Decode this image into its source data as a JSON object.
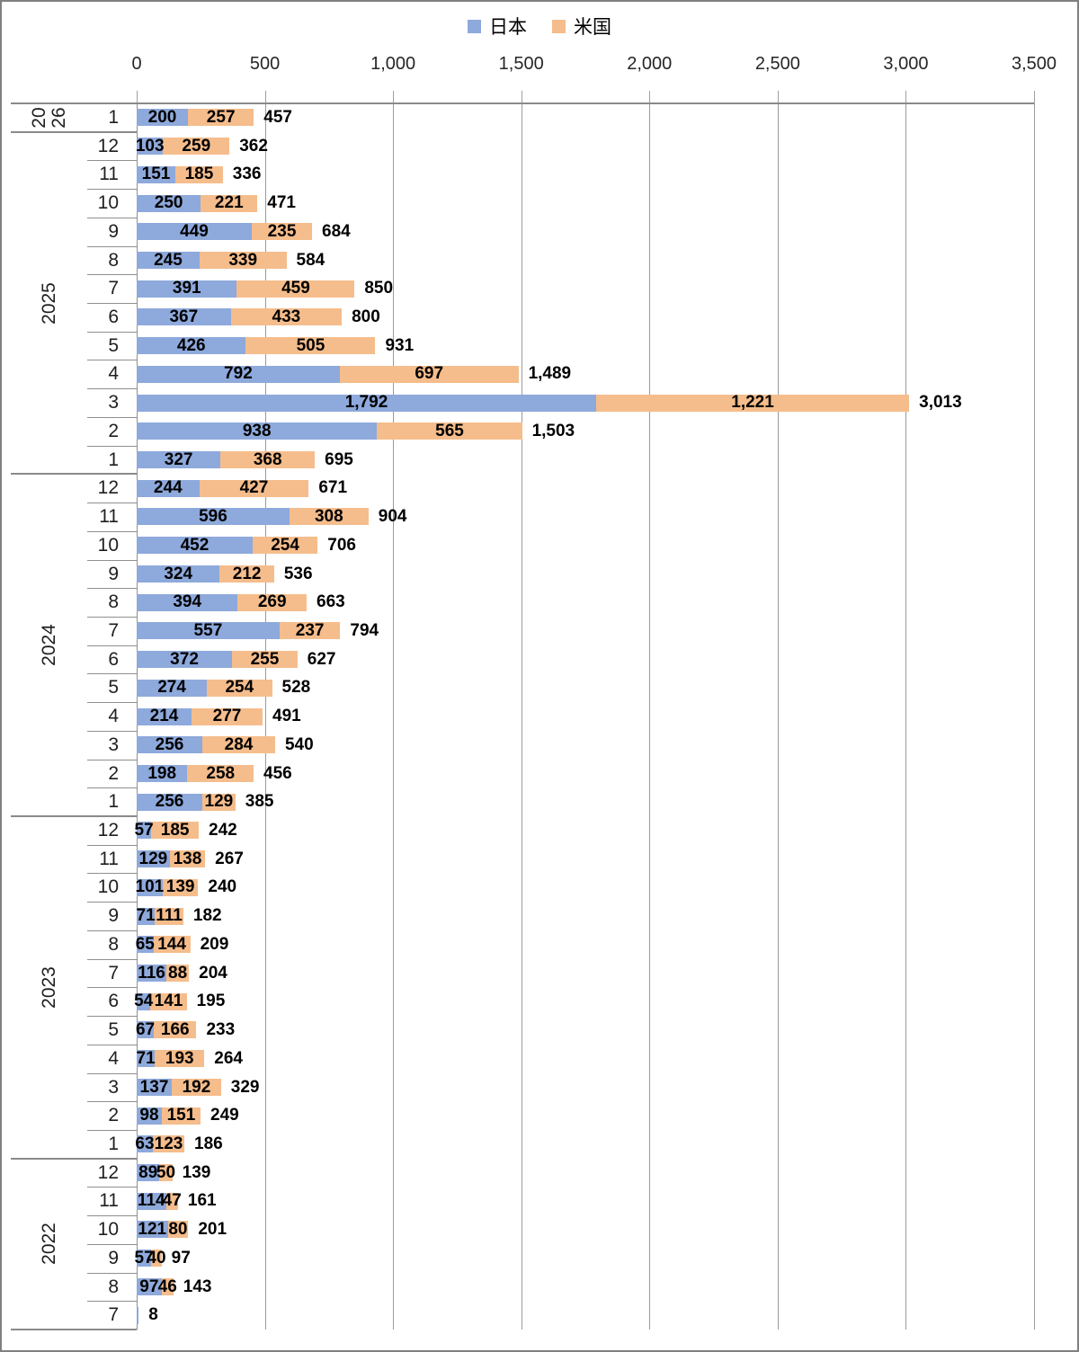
{
  "chart_data": {
    "type": "bar",
    "orientation": "horizontal",
    "stacked": true,
    "legend": [
      "日本",
      "米国"
    ],
    "legend_position": "top-center",
    "x_ticks": [
      "0",
      "500",
      "1,000",
      "1,500",
      "2,000",
      "2,500",
      "3,000",
      "3,500"
    ],
    "x_range": [
      0,
      3500
    ],
    "grid": true,
    "colors": {
      "japan": "#8EA9DB",
      "us": "#F5BD8C"
    },
    "series_names": [
      "日本",
      "米国"
    ],
    "groups": [
      {
        "year": "2026",
        "wrap_year_label": true,
        "rows": [
          {
            "month": "1",
            "japan": 200,
            "us": 257,
            "japan_label": "200",
            "us_label": "257",
            "total_label": "457"
          }
        ]
      },
      {
        "year": "2025",
        "wrap_year_label": false,
        "rows": [
          {
            "month": "12",
            "japan": 103,
            "us": 259,
            "japan_label": "103",
            "us_label": "259",
            "total_label": "362"
          },
          {
            "month": "11",
            "japan": 151,
            "us": 185,
            "japan_label": "151",
            "us_label": "185",
            "total_label": "336"
          },
          {
            "month": "10",
            "japan": 250,
            "us": 221,
            "japan_label": "250",
            "us_label": "221",
            "total_label": "471"
          },
          {
            "month": "9",
            "japan": 449,
            "us": 235,
            "japan_label": "449",
            "us_label": "235",
            "total_label": "684"
          },
          {
            "month": "8",
            "japan": 245,
            "us": 339,
            "japan_label": "245",
            "us_label": "339",
            "total_label": "584"
          },
          {
            "month": "7",
            "japan": 391,
            "us": 459,
            "japan_label": "391",
            "us_label": "459",
            "total_label": "850"
          },
          {
            "month": "6",
            "japan": 367,
            "us": 433,
            "japan_label": "367",
            "us_label": "433",
            "total_label": "800"
          },
          {
            "month": "5",
            "japan": 426,
            "us": 505,
            "japan_label": "426",
            "us_label": "505",
            "total_label": "931"
          },
          {
            "month": "4",
            "japan": 792,
            "us": 697,
            "japan_label": "792",
            "us_label": "697",
            "total_label": "1,489"
          },
          {
            "month": "3",
            "japan": 1792,
            "us": 1221,
            "japan_label": "1,792",
            "us_label": "1,221",
            "total_label": "3,013"
          },
          {
            "month": "2",
            "japan": 938,
            "us": 565,
            "japan_label": "938",
            "us_label": "565",
            "total_label": "1,503"
          },
          {
            "month": "1",
            "japan": 327,
            "us": 368,
            "japan_label": "327",
            "us_label": "368",
            "total_label": "695"
          }
        ]
      },
      {
        "year": "2024",
        "wrap_year_label": false,
        "rows": [
          {
            "month": "12",
            "japan": 244,
            "us": 427,
            "japan_label": "244",
            "us_label": "427",
            "total_label": "671"
          },
          {
            "month": "11",
            "japan": 596,
            "us": 308,
            "japan_label": "596",
            "us_label": "308",
            "total_label": "904"
          },
          {
            "month": "10",
            "japan": 452,
            "us": 254,
            "japan_label": "452",
            "us_label": "254",
            "total_label": "706"
          },
          {
            "month": "9",
            "japan": 324,
            "us": 212,
            "japan_label": "324",
            "us_label": "212",
            "total_label": "536"
          },
          {
            "month": "8",
            "japan": 394,
            "us": 269,
            "japan_label": "394",
            "us_label": "269",
            "total_label": "663"
          },
          {
            "month": "7",
            "japan": 557,
            "us": 237,
            "japan_label": "557",
            "us_label": "237",
            "total_label": "794"
          },
          {
            "month": "6",
            "japan": 372,
            "us": 255,
            "japan_label": "372",
            "us_label": "255",
            "total_label": "627"
          },
          {
            "month": "5",
            "japan": 274,
            "us": 254,
            "japan_label": "274",
            "us_label": "254",
            "total_label": "528"
          },
          {
            "month": "4",
            "japan": 214,
            "us": 277,
            "japan_label": "214",
            "us_label": "277",
            "total_label": "491"
          },
          {
            "month": "3",
            "japan": 256,
            "us": 284,
            "japan_label": "256",
            "us_label": "284",
            "total_label": "540"
          },
          {
            "month": "2",
            "japan": 198,
            "us": 258,
            "japan_label": "198",
            "us_label": "258",
            "total_label": "456"
          },
          {
            "month": "1",
            "japan": 256,
            "us": 129,
            "japan_label": "256",
            "us_label": "129",
            "total_label": "385"
          }
        ]
      },
      {
        "year": "2023",
        "wrap_year_label": false,
        "rows": [
          {
            "month": "12",
            "japan": 57,
            "us": 185,
            "japan_label": "57",
            "us_label": "185",
            "total_label": "242"
          },
          {
            "month": "11",
            "japan": 129,
            "us": 138,
            "japan_label": "129",
            "us_label": "138",
            "total_label": "267"
          },
          {
            "month": "10",
            "japan": 101,
            "us": 139,
            "japan_label": "101",
            "us_label": "139",
            "total_label": "240"
          },
          {
            "month": "9",
            "japan": 71,
            "us": 111,
            "japan_label": "71",
            "us_label": "111",
            "total_label": "182"
          },
          {
            "month": "8",
            "japan": 65,
            "us": 144,
            "japan_label": "65",
            "us_label": "144",
            "total_label": "209"
          },
          {
            "month": "7",
            "japan": 116,
            "us": 88,
            "japan_label": "116",
            "us_label": "88",
            "total_label": "204"
          },
          {
            "month": "6",
            "japan": 54,
            "us": 141,
            "japan_label": "54",
            "us_label": "141",
            "total_label": "195"
          },
          {
            "month": "5",
            "japan": 67,
            "us": 166,
            "japan_label": "67",
            "us_label": "166",
            "total_label": "233"
          },
          {
            "month": "4",
            "japan": 71,
            "us": 193,
            "japan_label": "71",
            "us_label": "193",
            "total_label": "264"
          },
          {
            "month": "3",
            "japan": 137,
            "us": 192,
            "japan_label": "137",
            "us_label": "192",
            "total_label": "329"
          },
          {
            "month": "2",
            "japan": 98,
            "us": 151,
            "japan_label": "98",
            "us_label": "151",
            "total_label": "249"
          },
          {
            "month": "1",
            "japan": 63,
            "us": 123,
            "japan_label": "63",
            "us_label": "123",
            "total_label": "186"
          }
        ]
      },
      {
        "year": "2022",
        "wrap_year_label": false,
        "rows": [
          {
            "month": "12",
            "japan": 89,
            "us": 50,
            "japan_label": "89",
            "us_label": "50",
            "total_label": "139"
          },
          {
            "month": "11",
            "japan": 114,
            "us": 47,
            "japan_label": "114",
            "us_label": "47",
            "total_label": "161"
          },
          {
            "month": "10",
            "japan": 121,
            "us": 80,
            "japan_label": "121",
            "us_label": "80",
            "total_label": "201"
          },
          {
            "month": "9",
            "japan": 57,
            "us": 40,
            "japan_label": "57",
            "us_label": "40",
            "total_label": "97"
          },
          {
            "month": "8",
            "japan": 97,
            "us": 46,
            "japan_label": "97",
            "us_label": "46",
            "total_label": "143"
          },
          {
            "month": "7",
            "japan": 8,
            "us": 0,
            "japan_label": "",
            "us_label": "",
            "total_label": "8"
          }
        ]
      }
    ]
  }
}
